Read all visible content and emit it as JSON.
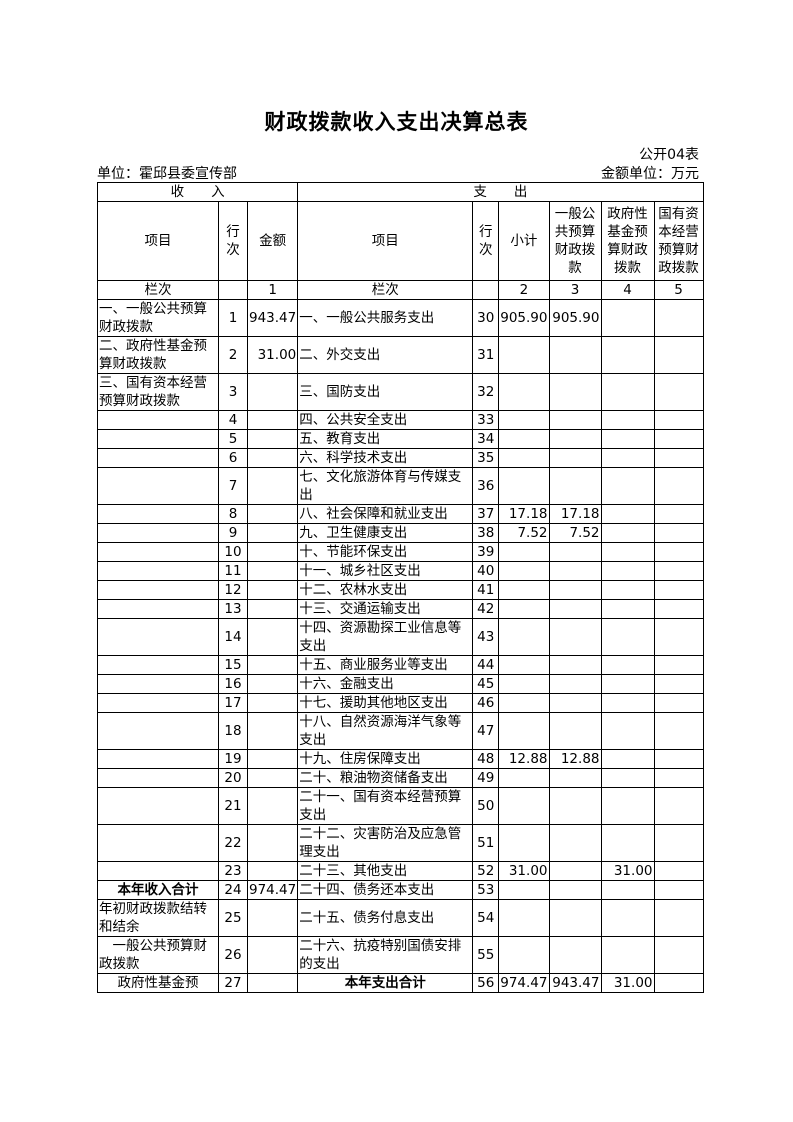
{
  "title": "财政拨款收入支出决算总表",
  "form_no": "公开04表",
  "unit": "单位：霍邱县委宣传部",
  "amount_unit": "金额单位：万元",
  "headers": {
    "income": "收　　入",
    "expense": "支　　出",
    "in_item": "项目",
    "in_line": "行次",
    "in_amount": "金额",
    "ex_item": "项目",
    "ex_line": "行次",
    "subtotal": "小计",
    "general": "一般公共预算财政拨款",
    "gov_fund": "政府性基金预算财政拨款",
    "state_capital": "国有资本经营预算财政拨款",
    "col_label": "栏次",
    "col_label2": "栏次",
    "c1": "1",
    "c2": "2",
    "c3": "3",
    "c4": "4",
    "c5": "5"
  },
  "rows": [
    [
      "一、一般公共预算财政拨款",
      "1",
      "943.47",
      "一、一般公共服务支出",
      "30",
      "905.90",
      "905.90",
      "",
      ""
    ],
    [
      "二、政府性基金预算财政拨款",
      "2",
      "31.00",
      "二、外交支出",
      "31",
      "",
      "",
      "",
      ""
    ],
    [
      "三、国有资本经营预算财政拨款",
      "3",
      "",
      "三、国防支出",
      "32",
      "",
      "",
      "",
      ""
    ],
    [
      "",
      "4",
      "",
      "四、公共安全支出",
      "33",
      "",
      "",
      "",
      ""
    ],
    [
      "",
      "5",
      "",
      "五、教育支出",
      "34",
      "",
      "",
      "",
      ""
    ],
    [
      "",
      "6",
      "",
      "六、科学技术支出",
      "35",
      "",
      "",
      "",
      ""
    ],
    [
      "",
      "7",
      "",
      "七、文化旅游体育与传媒支出",
      "36",
      "",
      "",
      "",
      ""
    ],
    [
      "",
      "8",
      "",
      "八、社会保障和就业支出",
      "37",
      "17.18",
      "17.18",
      "",
      ""
    ],
    [
      "",
      "9",
      "",
      "九、卫生健康支出",
      "38",
      "7.52",
      "7.52",
      "",
      ""
    ],
    [
      "",
      "10",
      "",
      "十、节能环保支出",
      "39",
      "",
      "",
      "",
      ""
    ],
    [
      "",
      "11",
      "",
      "十一、城乡社区支出",
      "40",
      "",
      "",
      "",
      ""
    ],
    [
      "",
      "12",
      "",
      "十二、农林水支出",
      "41",
      "",
      "",
      "",
      ""
    ],
    [
      "",
      "13",
      "",
      "十三、交通运输支出",
      "42",
      "",
      "",
      "",
      ""
    ],
    [
      "",
      "14",
      "",
      "十四、资源勘探工业信息等支出",
      "43",
      "",
      "",
      "",
      ""
    ],
    [
      "",
      "15",
      "",
      "十五、商业服务业等支出",
      "44",
      "",
      "",
      "",
      ""
    ],
    [
      "",
      "16",
      "",
      "十六、金融支出",
      "45",
      "",
      "",
      "",
      ""
    ],
    [
      "",
      "17",
      "",
      "十七、援助其他地区支出",
      "46",
      "",
      "",
      "",
      ""
    ],
    [
      "",
      "18",
      "",
      "十八、自然资源海洋气象等支出",
      "47",
      "",
      "",
      "",
      ""
    ],
    [
      "",
      "19",
      "",
      "十九、住房保障支出",
      "48",
      "12.88",
      "12.88",
      "",
      ""
    ],
    [
      "",
      "20",
      "",
      "二十、粮油物资储备支出",
      "49",
      "",
      "",
      "",
      ""
    ],
    [
      "",
      "21",
      "",
      "二十一、国有资本经营预算支出",
      "50",
      "",
      "",
      "",
      ""
    ],
    [
      "",
      "22",
      "",
      "二十二、灾害防治及应急管理支出",
      "51",
      "",
      "",
      "",
      ""
    ],
    [
      "",
      "23",
      "",
      "二十三、其他支出",
      "52",
      "31.00",
      "",
      "31.00",
      ""
    ],
    [
      "本年收入合计",
      "24",
      "974.47",
      "二十四、债务还本支出",
      "53",
      "",
      "",
      "",
      ""
    ],
    [
      "年初财政拨款结转和结余",
      "25",
      "",
      "二十五、债务付息支出",
      "54",
      "",
      "",
      "",
      ""
    ],
    [
      "　一般公共预算财政拨款",
      "26",
      "",
      "二十六、抗疫特别国债安排的支出",
      "55",
      "",
      "",
      "",
      ""
    ],
    [
      "政府性基金预",
      "27",
      "",
      "本年支出合计",
      "56",
      "974.47",
      "943.47",
      "31.00",
      ""
    ]
  ]
}
